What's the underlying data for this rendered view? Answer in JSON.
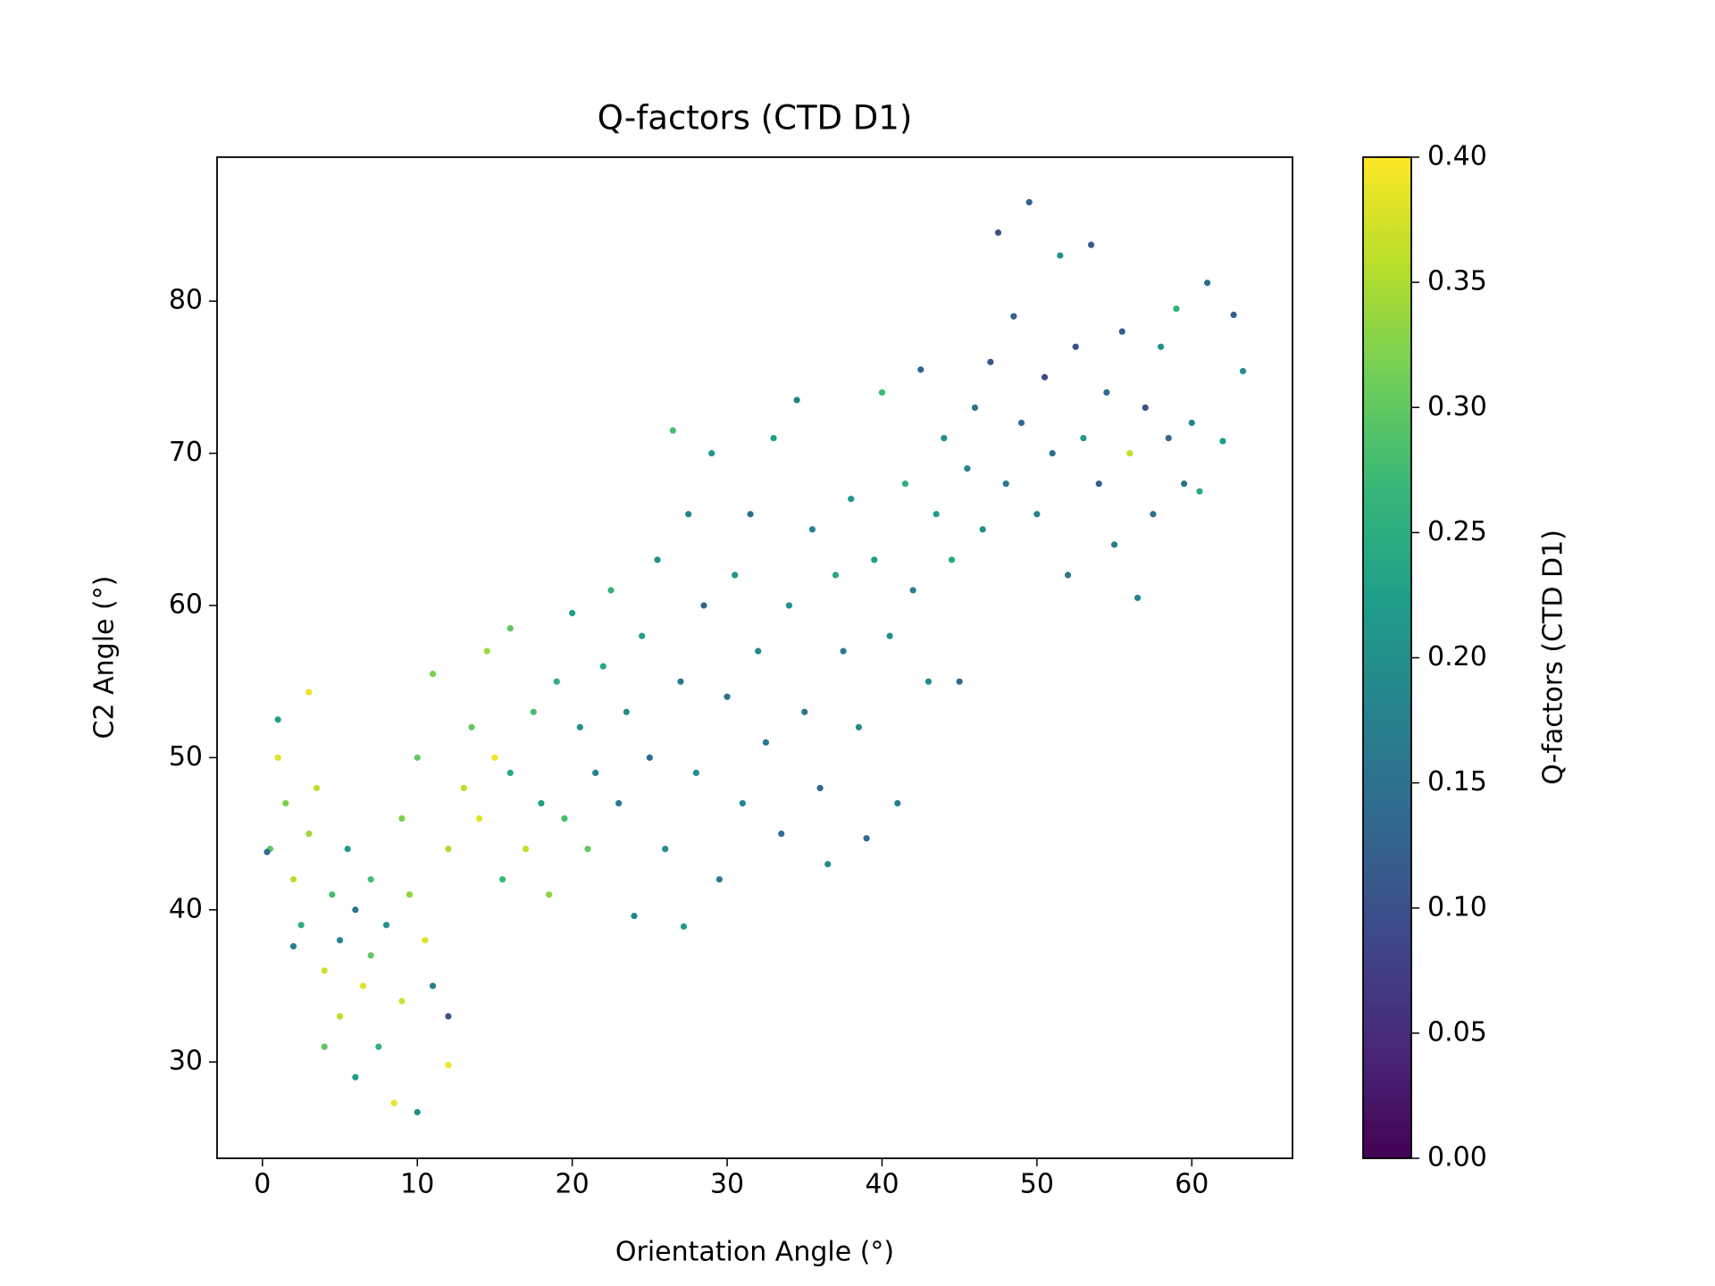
{
  "chart_data": {
    "type": "scatter",
    "title": "Q-factors (CTD D1)",
    "xlabel": "Orientation Angle (°)",
    "ylabel": "C2 Angle (°)",
    "colorbar_label": "Q-factors (CTD D1)",
    "colormap": [
      "#440154",
      "#482878",
      "#3e4989",
      "#31688e",
      "#26828e",
      "#1f9e89",
      "#35b779",
      "#6ece58",
      "#b5de2b",
      "#fde725"
    ],
    "clim": [
      0,
      0.4
    ],
    "cticks": [
      {
        "value": 0,
        "label": "0.00"
      },
      {
        "value": 0.05,
        "label": "0.05"
      },
      {
        "value": 0.1,
        "label": "0.10"
      },
      {
        "value": 0.15,
        "label": "0.15"
      },
      {
        "value": 0.2,
        "label": "0.20"
      },
      {
        "value": 0.25,
        "label": "0.25"
      },
      {
        "value": 0.3,
        "label": "0.30"
      },
      {
        "value": 0.35,
        "label": "0.35"
      },
      {
        "value": 0.4,
        "label": "0.40"
      }
    ],
    "xlim": [
      -2.93,
      66.5
    ],
    "ylim": [
      23.67,
      89.46
    ],
    "xticks": [
      0,
      10,
      20,
      30,
      40,
      50,
      60
    ],
    "yticks": [
      30,
      40,
      50,
      60,
      70,
      80
    ],
    "x": [
      0.5,
      1,
      1.5,
      2,
      2.5,
      3,
      3,
      4,
      4.5,
      5,
      5,
      5.5,
      6,
      6,
      6.5,
      7,
      7.5,
      8,
      8.5,
      9,
      9.5,
      10,
      10.5,
      11,
      12,
      12,
      1,
      0.3,
      2,
      3.5,
      4,
      7,
      9,
      10,
      11,
      12,
      13,
      13.5,
      14,
      14.5,
      15,
      15.5,
      16,
      16,
      17,
      17.5,
      18,
      18.5,
      19,
      19.5,
      20,
      20.5,
      21,
      21.5,
      22,
      22.5,
      23,
      23.5,
      24,
      24.5,
      25,
      25.5,
      26,
      26.5,
      27,
      27.2,
      27.5,
      28,
      28.5,
      29,
      29.5,
      30,
      30.5,
      31,
      31.5,
      32,
      32.5,
      33,
      33.5,
      34,
      34.5,
      35,
      35.5,
      36,
      36.5,
      37,
      37.5,
      38,
      38.5,
      39,
      39.5,
      40,
      40.5,
      41,
      41.5,
      42,
      42.5,
      43,
      43.5,
      44,
      44.5,
      45,
      45.5,
      46,
      46.5,
      47,
      47.5,
      48,
      48.5,
      49,
      49.5,
      50,
      50.5,
      51,
      51.5,
      52,
      52.5,
      53,
      53.5,
      54,
      54.5,
      55,
      55.5,
      56,
      56.5,
      57,
      57.5,
      58,
      58.5,
      59,
      59.5,
      60,
      60.5,
      61,
      62,
      62.7,
      63.3
    ],
    "y": [
      44,
      50,
      47,
      42,
      39,
      45,
      54.3,
      36,
      41,
      38,
      33,
      44,
      40,
      29,
      35,
      37,
      31,
      39,
      27.3,
      34,
      41,
      26.7,
      38,
      35,
      29.8,
      33,
      52.5,
      43.8,
      37.6,
      48,
      31,
      42,
      46,
      50,
      55.5,
      44,
      48,
      52,
      46,
      57,
      50,
      42,
      58.5,
      49,
      44,
      53,
      47,
      41,
      55,
      46,
      59.5,
      52,
      44,
      49,
      56,
      61,
      47,
      53,
      39.6,
      58,
      50,
      63,
      44,
      71.5,
      55,
      38.9,
      66,
      49,
      60,
      70,
      42,
      54,
      62,
      47,
      66,
      57,
      51,
      71,
      45,
      60,
      73.5,
      53,
      65,
      48,
      43,
      62,
      57,
      67,
      52,
      44.7,
      63,
      74,
      58,
      47,
      68,
      61,
      75.5,
      55,
      66,
      71,
      63,
      55,
      69,
      73,
      65,
      76,
      84.5,
      68,
      79,
      72,
      86.5,
      66,
      75,
      70,
      83,
      62,
      77,
      71,
      83.7,
      68,
      74,
      64,
      78,
      70,
      60.5,
      73,
      66,
      77,
      71,
      79.5,
      68,
      72,
      67.5,
      81.2,
      70.8,
      79.1,
      75.4
    ],
    "c": [
      0.3,
      0.38,
      0.32,
      0.36,
      0.25,
      0.34,
      0.39,
      0.37,
      0.28,
      0.18,
      0.36,
      0.22,
      0.16,
      0.22,
      0.38,
      0.3,
      0.26,
      0.2,
      0.39,
      0.37,
      0.33,
      0.2,
      0.38,
      0.18,
      0.39,
      0.1,
      0.22,
      0.14,
      0.18,
      0.36,
      0.3,
      0.28,
      0.32,
      0.3,
      0.32,
      0.35,
      0.36,
      0.3,
      0.38,
      0.34,
      0.39,
      0.27,
      0.3,
      0.24,
      0.36,
      0.28,
      0.22,
      0.33,
      0.25,
      0.28,
      0.22,
      0.2,
      0.3,
      0.18,
      0.24,
      0.26,
      0.16,
      0.2,
      0.18,
      0.22,
      0.14,
      0.2,
      0.19,
      0.28,
      0.16,
      0.22,
      0.18,
      0.2,
      0.13,
      0.21,
      0.17,
      0.15,
      0.21,
      0.18,
      0.14,
      0.19,
      0.16,
      0.22,
      0.14,
      0.2,
      0.17,
      0.15,
      0.18,
      0.13,
      0.19,
      0.24,
      0.17,
      0.21,
      0.19,
      0.14,
      0.22,
      0.27,
      0.2,
      0.18,
      0.25,
      0.17,
      0.13,
      0.19,
      0.22,
      0.2,
      0.24,
      0.14,
      0.18,
      0.15,
      0.2,
      0.11,
      0.1,
      0.16,
      0.12,
      0.13,
      0.12,
      0.18,
      0.09,
      0.14,
      0.2,
      0.16,
      0.1,
      0.21,
      0.11,
      0.12,
      0.14,
      0.17,
      0.12,
      0.36,
      0.18,
      0.1,
      0.14,
      0.2,
      0.13,
      0.26,
      0.15,
      0.18,
      0.24,
      0.14,
      0.22,
      0.12,
      0.2
    ]
  }
}
